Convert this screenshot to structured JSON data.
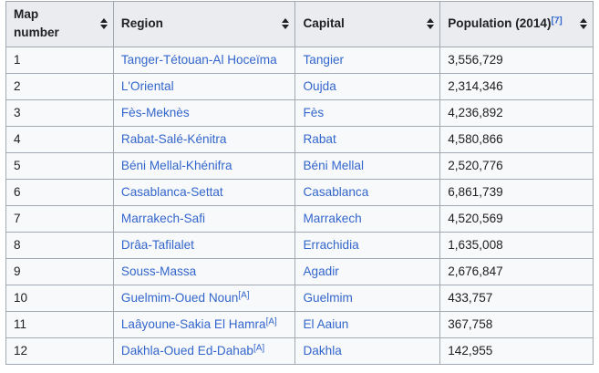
{
  "headers": [
    {
      "label": "Map number",
      "sup": ""
    },
    {
      "label": "Region",
      "sup": ""
    },
    {
      "label": "Capital",
      "sup": ""
    },
    {
      "label": "Population (2014)",
      "sup": "[7]"
    }
  ],
  "rows": [
    {
      "num": "1",
      "region": "Tanger-Tétouan-Al Hoceïma",
      "region_note": "",
      "capital": "Tangier",
      "population": "3,556,729"
    },
    {
      "num": "2",
      "region": "L'Oriental",
      "region_note": "",
      "capital": "Oujda",
      "population": "2,314,346"
    },
    {
      "num": "3",
      "region": "Fès-Meknès",
      "region_note": "",
      "capital": "Fès",
      "population": "4,236,892"
    },
    {
      "num": "4",
      "region": "Rabat-Salé-Kénitra",
      "region_note": "",
      "capital": "Rabat",
      "population": "4,580,866"
    },
    {
      "num": "5",
      "region": "Béni Mellal-Khénifra",
      "region_note": "",
      "capital": "Béni Mellal",
      "population": "2,520,776"
    },
    {
      "num": "6",
      "region": "Casablanca-Settat",
      "region_note": "",
      "capital": "Casablanca",
      "population": "6,861,739"
    },
    {
      "num": "7",
      "region": "Marrakech-Safi",
      "region_note": "",
      "capital": "Marrakech",
      "population": "4,520,569"
    },
    {
      "num": "8",
      "region": "Drâa-Tafilalet",
      "region_note": "",
      "capital": "Errachidia",
      "population": "1,635,008"
    },
    {
      "num": "9",
      "region": "Souss-Massa",
      "region_note": "",
      "capital": "Agadir",
      "population": "2,676,847"
    },
    {
      "num": "10",
      "region": "Guelmim-Oued Noun",
      "region_note": "[A]",
      "capital": "Guelmim",
      "population": "433,757"
    },
    {
      "num": "11",
      "region": "Laâyoune-Sakia El Hamra",
      "region_note": "[A]",
      "capital": "El Aaiun",
      "population": "367,758"
    },
    {
      "num": "12",
      "region": "Dakhla-Oued Ed-Dahab",
      "region_note": "[A]",
      "capital": "Dakhla",
      "population": "142,955"
    }
  ],
  "icons": {
    "sort": "sort-arrows-icon"
  },
  "colors": {
    "header_bg": "#eaecf0",
    "cell_bg": "#f8f9fa",
    "border": "#a2a9b1",
    "link": "#3366cc",
    "text": "#202122"
  }
}
